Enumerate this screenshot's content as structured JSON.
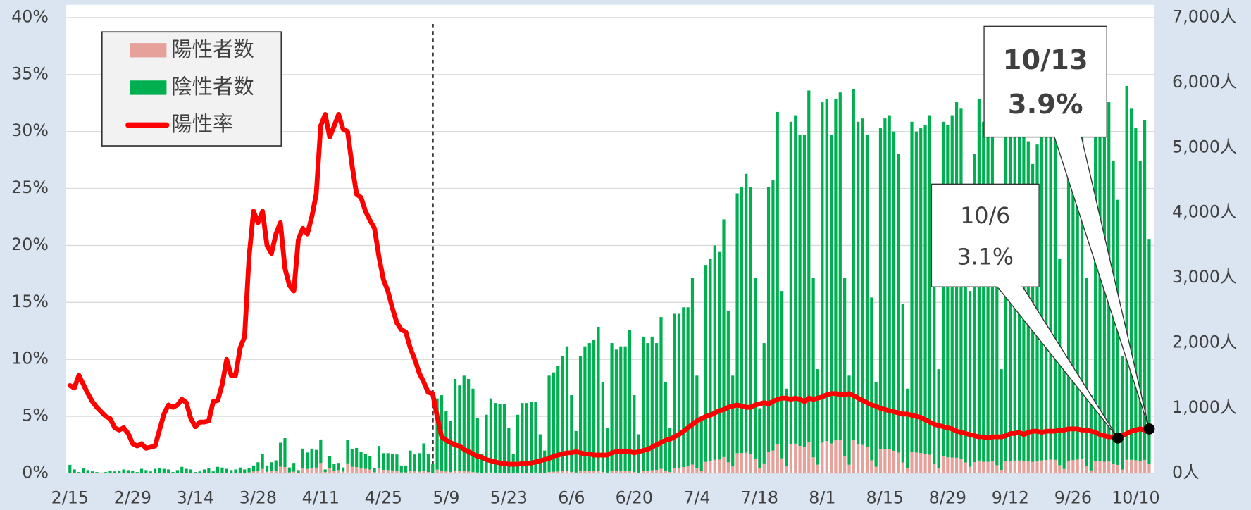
{
  "chart_data": {
    "type": "bar",
    "categories": [
      "2/15",
      null,
      null,
      null,
      null,
      null,
      null,
      null,
      null,
      null,
      null,
      null,
      null,
      null,
      "2/29",
      null,
      null,
      null,
      null,
      null,
      null,
      null,
      null,
      null,
      null,
      null,
      null,
      null,
      "3/14",
      null,
      null,
      null,
      null,
      null,
      null,
      null,
      null,
      null,
      null,
      null,
      null,
      null,
      "3/28",
      null,
      null,
      null,
      null,
      null,
      null,
      null,
      null,
      null,
      null,
      null,
      null,
      null,
      "4/11",
      null,
      null,
      null,
      null,
      null,
      null,
      null,
      null,
      null,
      null,
      null,
      null,
      null,
      "4/25",
      null,
      null,
      null,
      null,
      null,
      null,
      null,
      null,
      null,
      null,
      null,
      null,
      null,
      "5/9",
      null,
      null,
      null,
      null,
      null,
      null,
      null,
      null,
      null,
      null,
      null,
      null,
      null,
      "5/23",
      null,
      null,
      null,
      null,
      null,
      null,
      null,
      null,
      null,
      null,
      null,
      null,
      null,
      "6/6",
      null,
      null,
      null,
      null,
      null,
      null,
      null,
      null,
      null,
      null,
      null,
      null,
      null,
      "6/20",
      null,
      null,
      null,
      null,
      null,
      null,
      null,
      null,
      null,
      null,
      null,
      null,
      null,
      "7/4",
      null,
      null,
      null,
      null,
      null,
      null,
      null,
      null,
      null,
      null,
      null,
      null,
      null,
      "7/18",
      null,
      null,
      null,
      null,
      null,
      null,
      null,
      null,
      null,
      null,
      null,
      null,
      null,
      "8/1",
      null,
      null,
      null,
      null,
      null,
      null,
      null,
      null,
      null,
      null,
      null,
      null,
      null,
      "8/15",
      null,
      null,
      null,
      null,
      null,
      null,
      null,
      null,
      null,
      null,
      null,
      null,
      null,
      "8/29",
      null,
      null,
      null,
      null,
      null,
      null,
      null,
      null,
      null,
      null,
      null,
      null,
      null,
      "9/12",
      null,
      null,
      null,
      null,
      null,
      null,
      null,
      null,
      null,
      null,
      null,
      null,
      null,
      "9/26",
      null,
      null,
      null,
      null,
      null,
      null,
      null,
      null,
      null,
      null,
      null,
      null,
      null,
      "10/10",
      null,
      null,
      null
    ],
    "series": [
      {
        "name": "陽性者数",
        "type": "bar",
        "axis": "y2",
        "stacked": true,
        "color": "#e6a19b",
        "values": [
          10,
          5,
          2,
          6,
          4,
          2,
          1,
          1,
          1,
          2,
          1,
          2,
          2,
          2,
          1,
          1,
          2,
          1,
          1,
          2,
          3,
          4,
          4,
          1,
          3,
          7,
          4,
          3,
          1,
          1,
          3,
          4,
          2,
          6,
          7,
          7,
          4,
          5,
          10,
          7,
          15,
          28,
          37,
          69,
          24,
          33,
          42,
          103,
          97,
          15,
          26,
          10,
          82,
          67,
          86,
          88,
          159,
          19,
          80,
          43,
          50,
          27,
          153,
          100,
          96,
          80,
          69,
          60,
          17,
          80,
          53,
          50,
          44,
          38,
          15,
          15,
          39,
          29,
          27,
          37,
          21,
          11,
          58,
          38,
          28,
          22,
          36,
          32,
          32,
          28,
          22,
          13,
          4,
          11,
          13,
          11,
          10,
          9,
          6,
          3,
          8,
          9,
          10,
          11,
          12,
          7,
          5,
          22,
          25,
          28,
          32,
          35,
          22,
          12,
          32,
          33,
          34,
          33,
          36,
          22,
          11,
          36,
          36,
          37,
          37,
          42,
          22,
          11,
          42,
          42,
          48,
          52,
          70,
          42,
          22,
          81,
          86,
          97,
          107,
          135,
          75,
          42,
          176,
          185,
          207,
          211,
          250,
          170,
          105,
          310,
          312,
          317,
          299,
          219,
          75,
          152,
          330,
          351,
          450,
          230,
          108,
          443,
          456,
          421,
          406,
          482,
          246,
          133,
          473,
          495,
          458,
          506,
          509,
          261,
          132,
          507,
          448,
          436,
          400,
          200,
          101,
          371,
          376,
          374,
          347,
          319,
          166,
          82,
          335,
          320,
          313,
          300,
          286,
          150,
          78,
          259,
          246,
          242,
          239,
          224,
          167,
          101,
          172,
          196,
          178,
          176,
          186,
          125,
          53,
          187,
          182,
          196,
          198,
          194,
          184,
          176,
          182,
          198,
          204,
          211,
          207,
          125,
          68,
          195,
          203,
          211,
          217,
          114,
          44,
          194,
          187,
          178,
          182,
          149,
          130,
          59,
          208,
          207,
          201,
          187,
          206,
          140
        ]
      },
      {
        "name": "陰性者数",
        "type": "bar",
        "axis": "y2",
        "stacked": true,
        "color": "#00b050",
        "values": [
          120,
          55,
          18,
          74,
          46,
          28,
          19,
          9,
          19,
          38,
          29,
          38,
          58,
          48,
          39,
          19,
          68,
          49,
          29,
          68,
          77,
          66,
          56,
          19,
          47,
          93,
          66,
          57,
          19,
          29,
          57,
          76,
          28,
          94,
          83,
          63,
          46,
          55,
          80,
          53,
          65,
          92,
          133,
          231,
          96,
          137,
          158,
          367,
          443,
          75,
          134,
          40,
          298,
          253,
          294,
          272,
          361,
          41,
          190,
          97,
          110,
          63,
          357,
          270,
          294,
          250,
          231,
          210,
          63,
          340,
          257,
          260,
          256,
          252,
          105,
          105,
          311,
          261,
          283,
          423,
          279,
          139,
          1092,
          1162,
          932,
          778,
          1414,
          1318,
          1468,
          1422,
          1278,
          837,
          296,
          889,
          1137,
          1069,
          1050,
          1061,
          694,
          297,
          892,
          1071,
          1070,
          1089,
          1088,
          593,
          345,
          1478,
          1525,
          1622,
          1768,
          1915,
          1178,
          638,
          1768,
          1917,
          1966,
          2017,
          2214,
          1378,
          689,
          1964,
          1864,
          1913,
          1913,
          2158,
          1178,
          589,
          2058,
          1958,
          2052,
          1948,
          2330,
          1358,
          678,
          2369,
          2364,
          2453,
          2443,
          2865,
          1425,
          758,
          3024,
          3115,
          3293,
          3189,
          3650,
          2330,
          1395,
          3990,
          4088,
          4283,
          4101,
          2781,
          925,
          1848,
          4070,
          4149,
          5100,
          2570,
          1192,
          4957,
          5044,
          4779,
          4794,
          5398,
          2754,
          1467,
          5227,
          5255,
          4742,
          5244,
          5341,
          2739,
          1368,
          5393,
          4952,
          5014,
          4800,
          2500,
          1299,
          4929,
          5074,
          5126,
          4903,
          4581,
          2434,
          1218,
          5065,
          4930,
          4987,
          5050,
          5214,
          2850,
          1522,
          5141,
          5104,
          5258,
          5461,
          5376,
          4233,
          2699,
          4728,
          5554,
          5222,
          5324,
          5464,
          3675,
          1547,
          5313,
          5018,
          5404,
          5302,
          5506,
          4916,
          4574,
          4868,
          5302,
          5296,
          5489,
          5393,
          3175,
          1732,
          4805,
          4997,
          5189,
          5483,
          2886,
          1156,
          5206,
          5313,
          5222,
          5518,
          4651,
          4070,
          1741,
          5742,
          5393,
          5099,
          4613,
          5214,
          3460
        ]
      },
      {
        "name": "陽性率",
        "type": "line",
        "axis": "y",
        "color": "#ff0000",
        "values": [
          7.7,
          7.5,
          8.6,
          7.8,
          7.0,
          6.3,
          5.8,
          5.4,
          5.0,
          4.8,
          4.0,
          3.8,
          4.0,
          3.5,
          2.6,
          2.4,
          2.6,
          2.2,
          2.3,
          2.4,
          3.8,
          5.2,
          6.0,
          5.8,
          6.0,
          6.5,
          6.2,
          4.8,
          4.1,
          4.5,
          4.5,
          4.6,
          6.3,
          6.4,
          7.8,
          10.0,
          8.6,
          8.6,
          11.0,
          12.0,
          19.0,
          23.0,
          22.0,
          23.0,
          20.0,
          19.3,
          21.0,
          22.0,
          18.0,
          16.5,
          16.0,
          20.5,
          21.5,
          21.0,
          22.5,
          24.5,
          30.5,
          31.5,
          29.5,
          30.5,
          31.5,
          30.2,
          30.0,
          27.0,
          24.5,
          24.2,
          23.0,
          22.2,
          21.5,
          19.0,
          17.0,
          16.0,
          14.5,
          13.2,
          12.6,
          12.4,
          11.0,
          10.0,
          8.8,
          8.0,
          7.1,
          7.0,
          5.0,
          3.2,
          2.9,
          2.7,
          2.5,
          2.4,
          2.1,
          1.9,
          1.7,
          1.5,
          1.4,
          1.2,
          1.1,
          1.0,
          0.9,
          0.85,
          0.8,
          0.8,
          0.8,
          0.85,
          0.9,
          0.9,
          1.0,
          1.1,
          1.2,
          1.3,
          1.5,
          1.6,
          1.7,
          1.8,
          1.8,
          1.9,
          1.8,
          1.7,
          1.7,
          1.6,
          1.6,
          1.6,
          1.6,
          1.8,
          1.9,
          1.9,
          1.9,
          1.9,
          1.8,
          1.9,
          2.0,
          2.1,
          2.3,
          2.5,
          2.7,
          2.9,
          3.0,
          3.2,
          3.4,
          3.7,
          4.0,
          4.3,
          4.6,
          4.8,
          5.0,
          5.1,
          5.3,
          5.5,
          5.6,
          5.8,
          5.9,
          6.0,
          5.9,
          5.8,
          5.8,
          6.0,
          6.1,
          6.2,
          6.1,
          6.3,
          6.5,
          6.6,
          6.6,
          6.5,
          6.6,
          6.5,
          6.3,
          6.6,
          6.5,
          6.6,
          6.7,
          6.9,
          7.0,
          7.0,
          6.9,
          6.9,
          7.0,
          6.8,
          6.6,
          6.4,
          6.2,
          6.0,
          5.9,
          5.7,
          5.6,
          5.5,
          5.4,
          5.3,
          5.2,
          5.2,
          5.1,
          5.0,
          4.9,
          4.7,
          4.5,
          4.3,
          4.2,
          4.1,
          4.0,
          3.9,
          3.7,
          3.6,
          3.5,
          3.4,
          3.3,
          3.2,
          3.2,
          3.1,
          3.2,
          3.2,
          3.2,
          3.3,
          3.5,
          3.5,
          3.6,
          3.4,
          3.6,
          3.7,
          3.7,
          3.6,
          3.7,
          3.7,
          3.7,
          3.8,
          3.8,
          3.9,
          3.9,
          3.9,
          3.8,
          3.8,
          3.7,
          3.6,
          3.4,
          3.3,
          3.2,
          3.2,
          3.1,
          3.3,
          3.5,
          3.7,
          3.8,
          3.9,
          3.8,
          3.9
        ]
      }
    ],
    "ylim": [
      0,
      40
    ],
    "yticks": [
      {
        "value": 0,
        "label": "0%"
      },
      {
        "value": 5,
        "label": "5%"
      },
      {
        "value": 10,
        "label": "10%"
      },
      {
        "value": 15,
        "label": "15%"
      },
      {
        "value": 20,
        "label": "20%"
      },
      {
        "value": 25,
        "label": "25%"
      },
      {
        "value": 30,
        "label": "30%"
      },
      {
        "value": 35,
        "label": "35%"
      },
      {
        "value": 40,
        "label": "40%"
      }
    ],
    "y2lim": [
      0,
      7000
    ],
    "y2ticks": [
      {
        "value": 0,
        "label": "0人"
      },
      {
        "value": 1000,
        "label": "1,000人"
      },
      {
        "value": 2000,
        "label": "2,000人"
      },
      {
        "value": 3000,
        "label": "3,000人"
      },
      {
        "value": 4000,
        "label": "4,000人"
      },
      {
        "value": 5000,
        "label": "5,000人"
      },
      {
        "value": 6000,
        "label": "6,000人"
      },
      {
        "value": 7000,
        "label": "7,000人"
      }
    ],
    "grid": true,
    "legend": "upper left",
    "annotations": [
      {
        "date": "10/6",
        "text": "3.1%"
      },
      {
        "date": "10/13",
        "text": "3.9%"
      }
    ]
  }
}
